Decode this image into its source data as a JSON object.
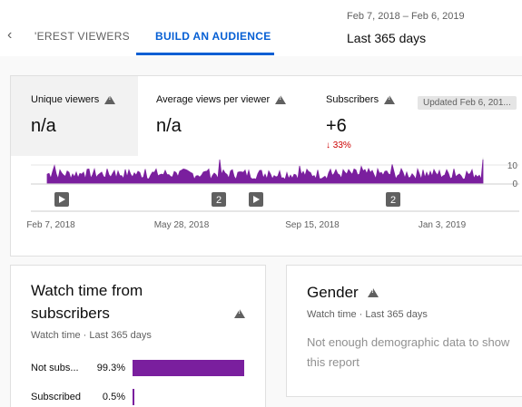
{
  "nav": {
    "back": "‹",
    "tabs": [
      {
        "label": "'EREST VIEWERS"
      },
      {
        "label": "BUILD AN AUDIENCE"
      }
    ],
    "date_range": "Feb 7, 2018 – Feb 6, 2019",
    "period": "Last 365 days"
  },
  "metrics": [
    {
      "label": "Unique viewers",
      "value": "n/a",
      "change": ""
    },
    {
      "label": "Average views per viewer",
      "value": "n/a",
      "change": ""
    },
    {
      "label": "Subscribers",
      "value": "+6",
      "change": "↓ 33%"
    }
  ],
  "updated": "Updated Feb 6, 201...",
  "chart_data": {
    "type": "area",
    "x_ticks": [
      "Feb 7, 2018",
      "May 28, 2018",
      "Sep 15, 2018",
      "Jan 3, 2019"
    ],
    "y_ticks": [
      10,
      0
    ],
    "ylim": [
      0,
      10
    ],
    "color": "#7a1f9e",
    "markers": [
      "play",
      "2",
      "play",
      "2"
    ]
  },
  "watch_time": {
    "title_line1": "Watch time from",
    "title_line2": "subscribers",
    "subtitle": "Watch time · Last 365 days",
    "rows": [
      {
        "label": "Not subs...",
        "pct_text": "99.3%",
        "pct": 0.993
      },
      {
        "label": "Subscribed",
        "pct_text": "0.5%",
        "pct": 0.005
      }
    ]
  },
  "gender": {
    "title": "Gender",
    "subtitle": "Watch time · Last 365 days",
    "message": "Not enough demographic data to show this report"
  }
}
